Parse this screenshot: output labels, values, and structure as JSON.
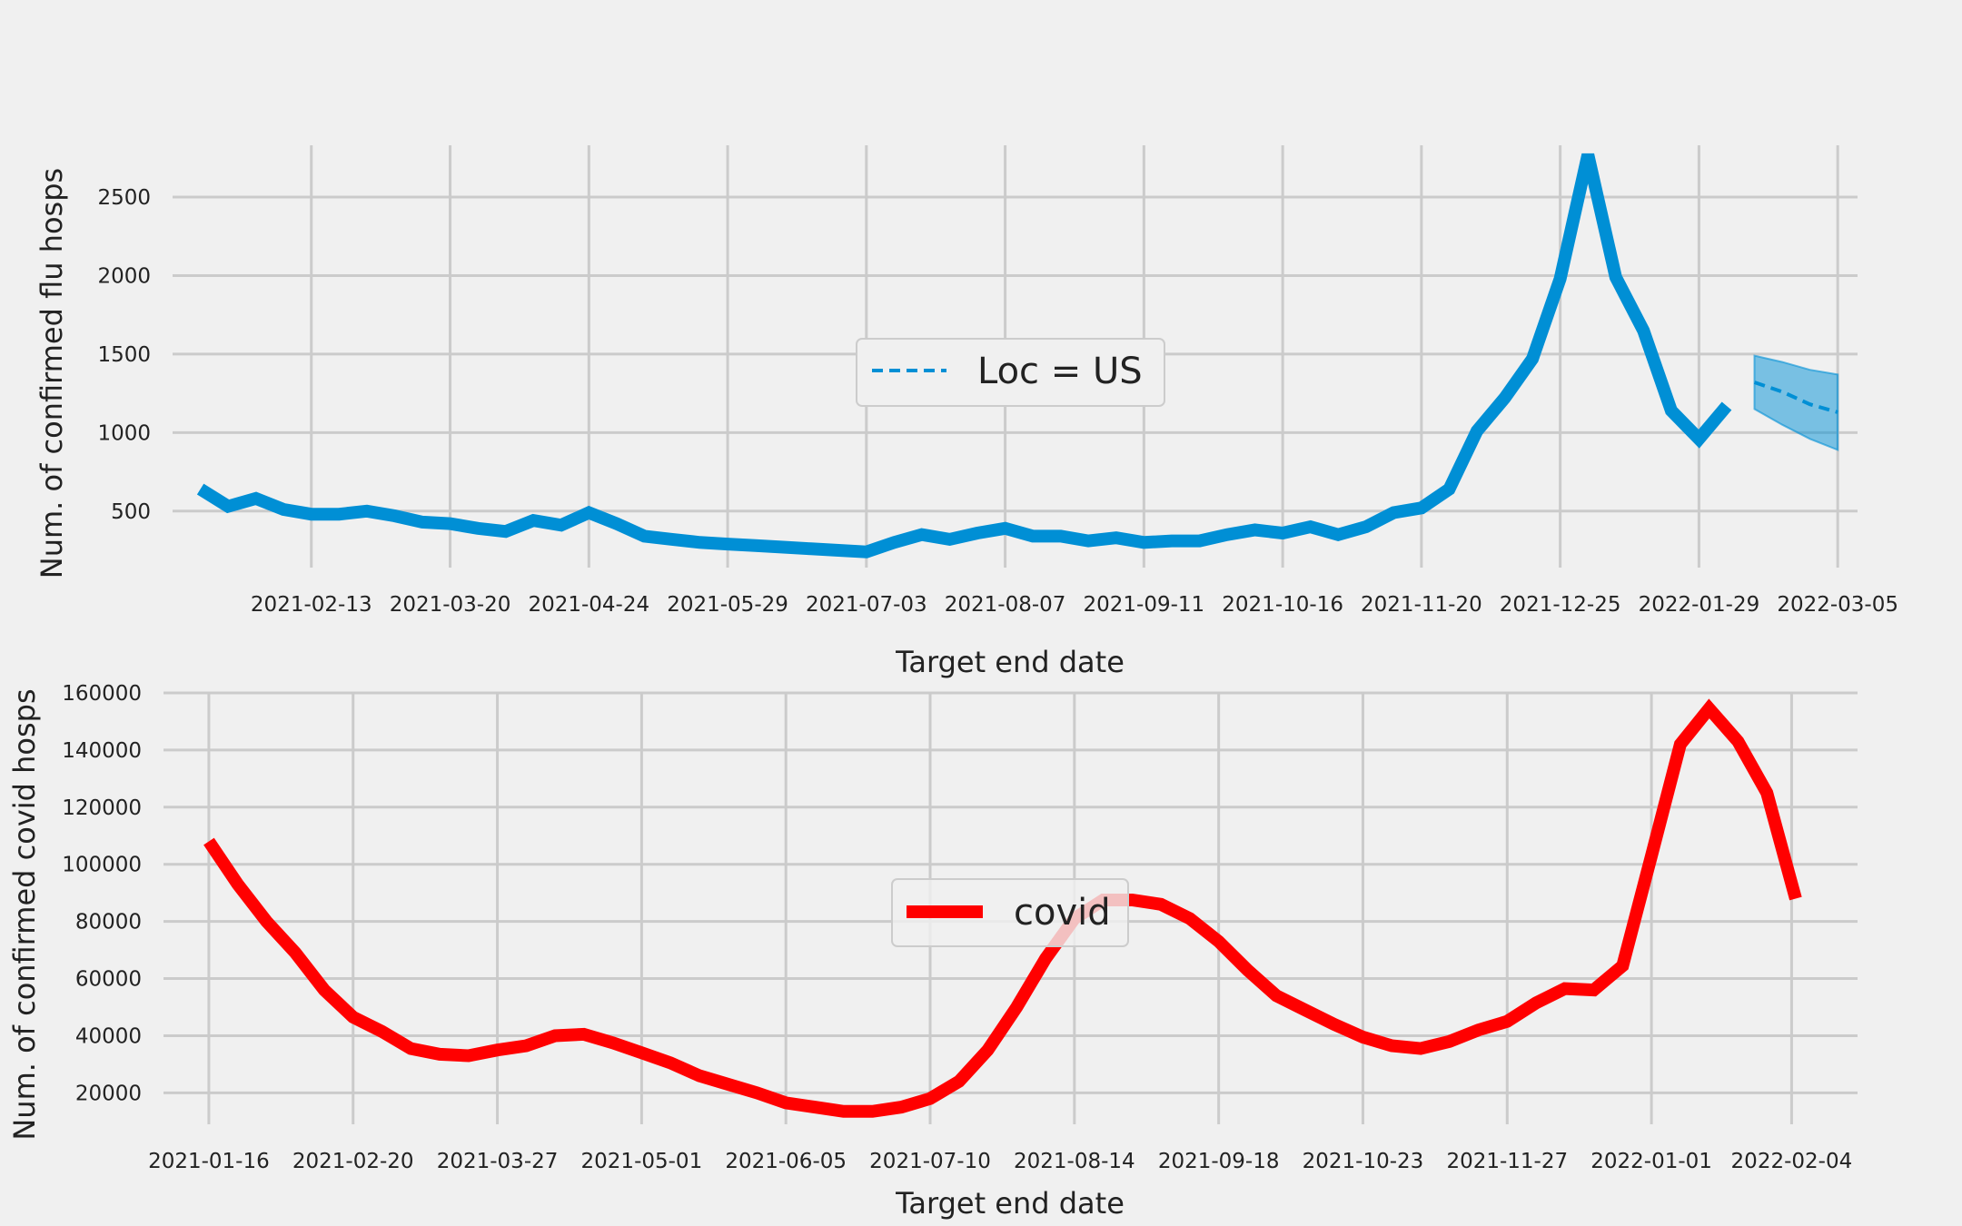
{
  "chart_data": [
    {
      "type": "line",
      "xlabel": "Target end date",
      "ylabel": "Num. of confirmed flu hosps",
      "ylim": [
        140,
        2830
      ],
      "yticks": [
        500,
        1000,
        1500,
        2000,
        2500
      ],
      "x_range": [
        "2021-01-09",
        "2022-03-10"
      ],
      "x_ticks": [
        "2021-02-13",
        "2021-03-20",
        "2021-04-24",
        "2021-05-29",
        "2021-07-03",
        "2021-08-07",
        "2021-09-11",
        "2021-10-16",
        "2021-11-20",
        "2021-12-25",
        "2022-01-29",
        "2022-03-05"
      ],
      "grid": true,
      "legend": {
        "location": "center",
        "label": "Loc = US"
      },
      "colors": {
        "line": "#008fd5",
        "band": "#008fd5"
      },
      "series": [
        {
          "role": "observed",
          "dates": [
            "2021-01-16",
            "2021-01-23",
            "2021-01-30",
            "2021-02-06",
            "2021-02-13",
            "2021-02-20",
            "2021-02-27",
            "2021-03-06",
            "2021-03-13",
            "2021-03-20",
            "2021-03-27",
            "2021-04-03",
            "2021-04-10",
            "2021-04-17",
            "2021-04-24",
            "2021-05-01",
            "2021-05-08",
            "2021-05-15",
            "2021-05-22",
            "2021-05-29",
            "2021-06-05",
            "2021-06-12",
            "2021-06-19",
            "2021-06-26",
            "2021-07-03",
            "2021-07-10",
            "2021-07-17",
            "2021-07-24",
            "2021-07-31",
            "2021-08-07",
            "2021-08-14",
            "2021-08-21",
            "2021-08-28",
            "2021-09-04",
            "2021-09-11",
            "2021-09-18",
            "2021-09-25",
            "2021-10-02",
            "2021-10-09",
            "2021-10-16",
            "2021-10-23",
            "2021-10-30",
            "2021-11-06",
            "2021-11-13",
            "2021-11-20",
            "2021-11-27",
            "2021-12-04",
            "2021-12-11",
            "2021-12-18",
            "2021-12-25",
            "2022-01-01",
            "2022-01-08",
            "2022-01-15",
            "2022-01-22",
            "2022-01-29",
            "2022-02-05"
          ],
          "values": [
            640,
            530,
            580,
            510,
            480,
            480,
            500,
            470,
            430,
            420,
            390,
            370,
            440,
            410,
            490,
            420,
            340,
            320,
            300,
            290,
            280,
            270,
            260,
            250,
            240,
            300,
            350,
            320,
            360,
            390,
            340,
            340,
            310,
            330,
            300,
            310,
            310,
            350,
            380,
            360,
            400,
            350,
            400,
            490,
            520,
            640,
            1010,
            1220,
            1470,
            1980,
            2770,
            1990,
            1650,
            1140,
            960,
            1170
          ]
        },
        {
          "role": "forecast",
          "dates": [
            "2022-02-12",
            "2022-02-19",
            "2022-02-26",
            "2022-03-05"
          ],
          "values": [
            1320,
            1260,
            1180,
            1130
          ],
          "lower": [
            1150,
            1050,
            960,
            890
          ],
          "upper": [
            1490,
            1450,
            1400,
            1370
          ]
        }
      ]
    },
    {
      "type": "line",
      "xlabel": "Target end date",
      "ylabel": "Num. of confirmed covid hosps",
      "ylim": [
        9000,
        160300
      ],
      "yticks": [
        20000,
        40000,
        60000,
        80000,
        100000,
        120000,
        140000,
        160000
      ],
      "x_range": [
        "2021-01-05",
        "2022-02-20"
      ],
      "x_ticks": [
        "2021-01-16",
        "2021-02-20",
        "2021-03-27",
        "2021-05-01",
        "2021-06-05",
        "2021-07-10",
        "2021-08-14",
        "2021-09-18",
        "2021-10-23",
        "2021-11-27",
        "2022-01-01",
        "2022-02-04"
      ],
      "grid": true,
      "legend": {
        "location": "center",
        "label": "covid"
      },
      "colors": {
        "line": "#ff0000"
      },
      "series": [
        {
          "name": "covid",
          "start": "2021-01-16",
          "step_days": 7,
          "values": [
            108000,
            93000,
            80000,
            69000,
            56000,
            46500,
            41500,
            35500,
            33500,
            33000,
            35000,
            36500,
            40000,
            40500,
            37500,
            34000,
            30500,
            26000,
            23000,
            20000,
            16500,
            15000,
            13500,
            13500,
            15000,
            18000,
            24000,
            35000,
            50000,
            67000,
            81000,
            87500,
            87500,
            86000,
            81000,
            73000,
            63000,
            54000,
            49000,
            44000,
            39500,
            36500,
            35500,
            38000,
            42000,
            45000,
            51500,
            56500,
            56000,
            64500,
            103000,
            142000,
            154500,
            143000,
            125000,
            88000
          ]
        }
      ]
    }
  ]
}
